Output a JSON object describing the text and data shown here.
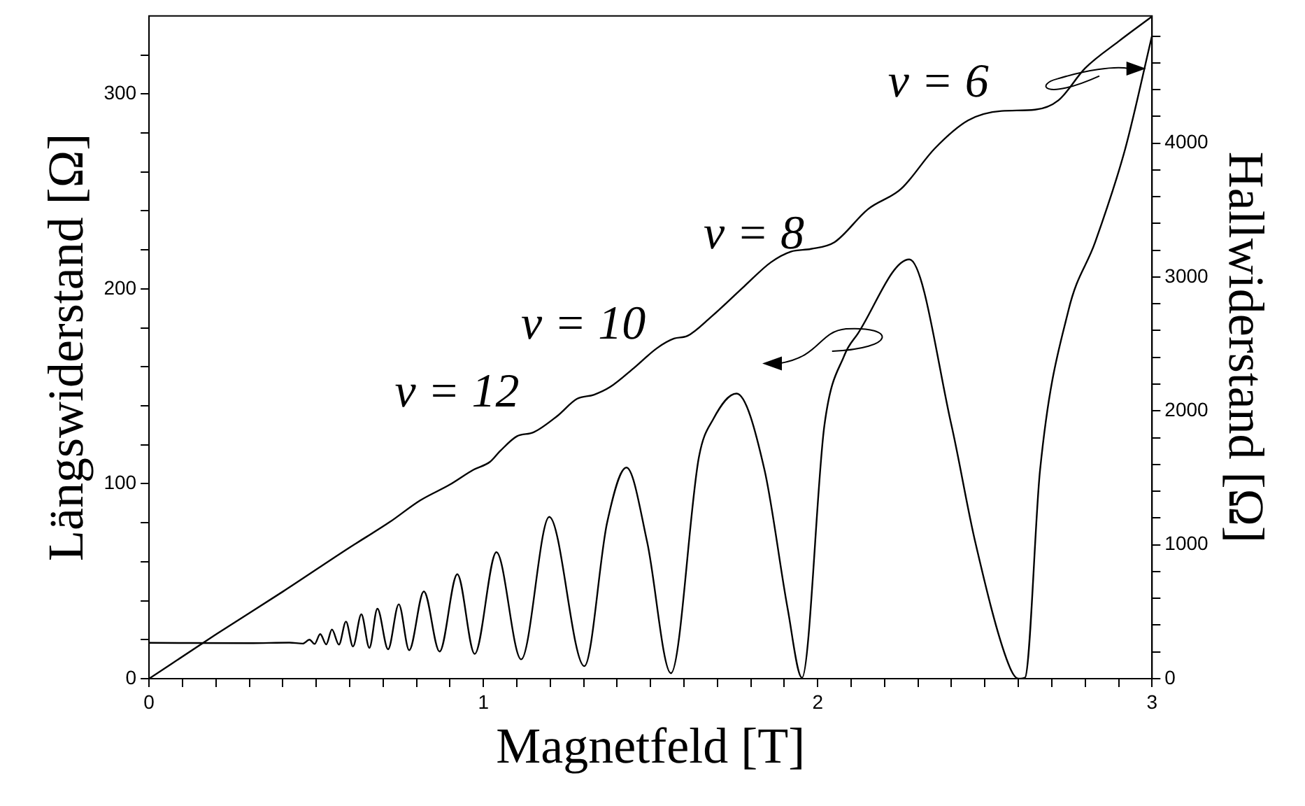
{
  "chart_data": {
    "type": "line",
    "xlabel": "Magnetfeld [T]",
    "ylabel": "Längswiderstand [Ω]",
    "y2label": "Hallwiderstand [Ω]",
    "xlim": [
      0,
      3
    ],
    "xticks": [
      0,
      {
        "value": 0.1,
        "label": null
      },
      {
        "value": 0.2,
        "label": null
      },
      {
        "value": 0.3,
        "label": null
      },
      {
        "value": 0.4,
        "label": null
      },
      {
        "value": 0.5,
        "label": null
      },
      {
        "value": 0.6,
        "label": null
      },
      {
        "value": 0.7,
        "label": null
      },
      {
        "value": 0.8,
        "label": null
      },
      {
        "value": 0.9,
        "label": null
      },
      1,
      {
        "value": 1.1,
        "label": null
      },
      {
        "value": 1.2,
        "label": null
      },
      {
        "value": 1.3,
        "label": null
      },
      {
        "value": 1.4,
        "label": null
      },
      {
        "value": 1.5,
        "label": null
      },
      {
        "value": 1.6,
        "label": null
      },
      {
        "value": 1.7,
        "label": null
      },
      {
        "value": 1.8,
        "label": null
      },
      {
        "value": 1.9,
        "label": null
      },
      2,
      {
        "value": 2.1,
        "label": null
      },
      {
        "value": 2.2,
        "label": null
      },
      {
        "value": 2.3,
        "label": null
      },
      {
        "value": 2.4,
        "label": null
      },
      {
        "value": 2.5,
        "label": null
      },
      {
        "value": 2.6,
        "label": null
      },
      {
        "value": 2.7,
        "label": null
      },
      {
        "value": 2.8,
        "label": null
      },
      {
        "value": 2.9,
        "label": null
      },
      3
    ],
    "ylim": [
      0,
      340
    ],
    "yticks": [
      0,
      {
        "value": 20,
        "label": null
      },
      {
        "value": 40,
        "label": null
      },
      {
        "value": 60,
        "label": null
      },
      {
        "value": 80,
        "label": null
      },
      100,
      {
        "value": 120,
        "label": null
      },
      {
        "value": 140,
        "label": null
      },
      {
        "value": 160,
        "label": null
      },
      {
        "value": 180,
        "label": null
      },
      200,
      {
        "value": 220,
        "label": null
      },
      {
        "value": 240,
        "label": null
      },
      {
        "value": 260,
        "label": null
      },
      {
        "value": 280,
        "label": null
      },
      300,
      {
        "value": 320,
        "label": null
      }
    ],
    "y2lim": [
      0,
      4950
    ],
    "y2ticks": [
      0,
      {
        "value": 200,
        "label": null
      },
      {
        "value": 400,
        "label": null
      },
      {
        "value": 600,
        "label": null
      },
      {
        "value": 800,
        "label": null
      },
      1000,
      {
        "value": 1200,
        "label": null
      },
      {
        "value": 1400,
        "label": null
      },
      {
        "value": 1600,
        "label": null
      },
      {
        "value": 1800,
        "label": null
      },
      2000,
      {
        "value": 2200,
        "label": null
      },
      {
        "value": 2400,
        "label": null
      },
      {
        "value": 2600,
        "label": null
      },
      {
        "value": 2800,
        "label": null
      },
      3000,
      {
        "value": 3200,
        "label": null
      },
      {
        "value": 3400,
        "label": null
      },
      {
        "value": 3600,
        "label": null
      },
      {
        "value": 3800,
        "label": null
      },
      4000,
      {
        "value": 4200,
        "label": null
      },
      {
        "value": 4400,
        "label": null
      },
      {
        "value": 4600,
        "label": null
      },
      {
        "value": 4800,
        "label": null
      }
    ],
    "legend": false,
    "marker": "none",
    "line_style": "solid",
    "series": [
      {
        "color": "#000000",
        "x": [
          0,
          0.3,
          0.42,
          0.46,
          0.48,
          0.495,
          0.512,
          0.53,
          0.547,
          0.568,
          0.589,
          0.61,
          0.635,
          0.659,
          0.683,
          0.715,
          0.747,
          0.778,
          0.822,
          0.869,
          0.922,
          0.974,
          1.039,
          1.113,
          1.197,
          1.302,
          1.37,
          1.428,
          1.49,
          1.561,
          1.645,
          1.687,
          1.757,
          1.841,
          1.91,
          1.953,
          2.02,
          2.08,
          2.12,
          2.274,
          2.4,
          2.47,
          2.57,
          2.6,
          2.62,
          2.665,
          2.75,
          2.83,
          2.92,
          3
        ],
        "values": [
          18.4,
          18.2,
          18.5,
          18,
          20,
          17.8,
          22.9,
          17.6,
          25.2,
          17.5,
          29.3,
          16.5,
          33,
          15.8,
          35.9,
          15.1,
          38.2,
          14.6,
          44.8,
          13.9,
          53.6,
          12.7,
          64.9,
          9.9,
          83,
          6.4,
          80,
          108.3,
          70,
          2.8,
          114,
          133,
          146.3,
          107,
          36,
          0.5,
          130,
          166,
          177,
          215.1,
          130,
          71,
          7.7,
          0,
          0.5,
          107,
          189,
          224,
          272,
          330
        ]
      },
      {
        "color": "#000000",
        "axis": "y2",
        "x": [
          0,
          0.2,
          0.4,
          0.6,
          0.72,
          0.81,
          0.9,
          0.97,
          1.02,
          1.05,
          1.1,
          1.15,
          1.22,
          1.28,
          1.33,
          1.38,
          1.45,
          1.52,
          1.57,
          1.61,
          1.68,
          1.78,
          1.86,
          1.92,
          1.98,
          2.05,
          2.15,
          2.25,
          2.35,
          2.45,
          2.55,
          2.65,
          2.72,
          2.8,
          2.9,
          3
        ],
        "values": [
          0,
          330,
          650,
          980,
          1170,
          1330,
          1450,
          1560,
          1620,
          1700,
          1810,
          1840,
          1960,
          2090,
          2120,
          2180,
          2320,
          2470,
          2540,
          2560,
          2700,
          2930,
          3110,
          3190,
          3210,
          3260,
          3506,
          3660,
          3960,
          4170,
          4240,
          4250,
          4320,
          4560,
          4760,
          4946
        ]
      }
    ],
    "annotations": [
      "ν = 12",
      "ν = 10",
      "ν = 8",
      "ν = 6"
    ]
  }
}
